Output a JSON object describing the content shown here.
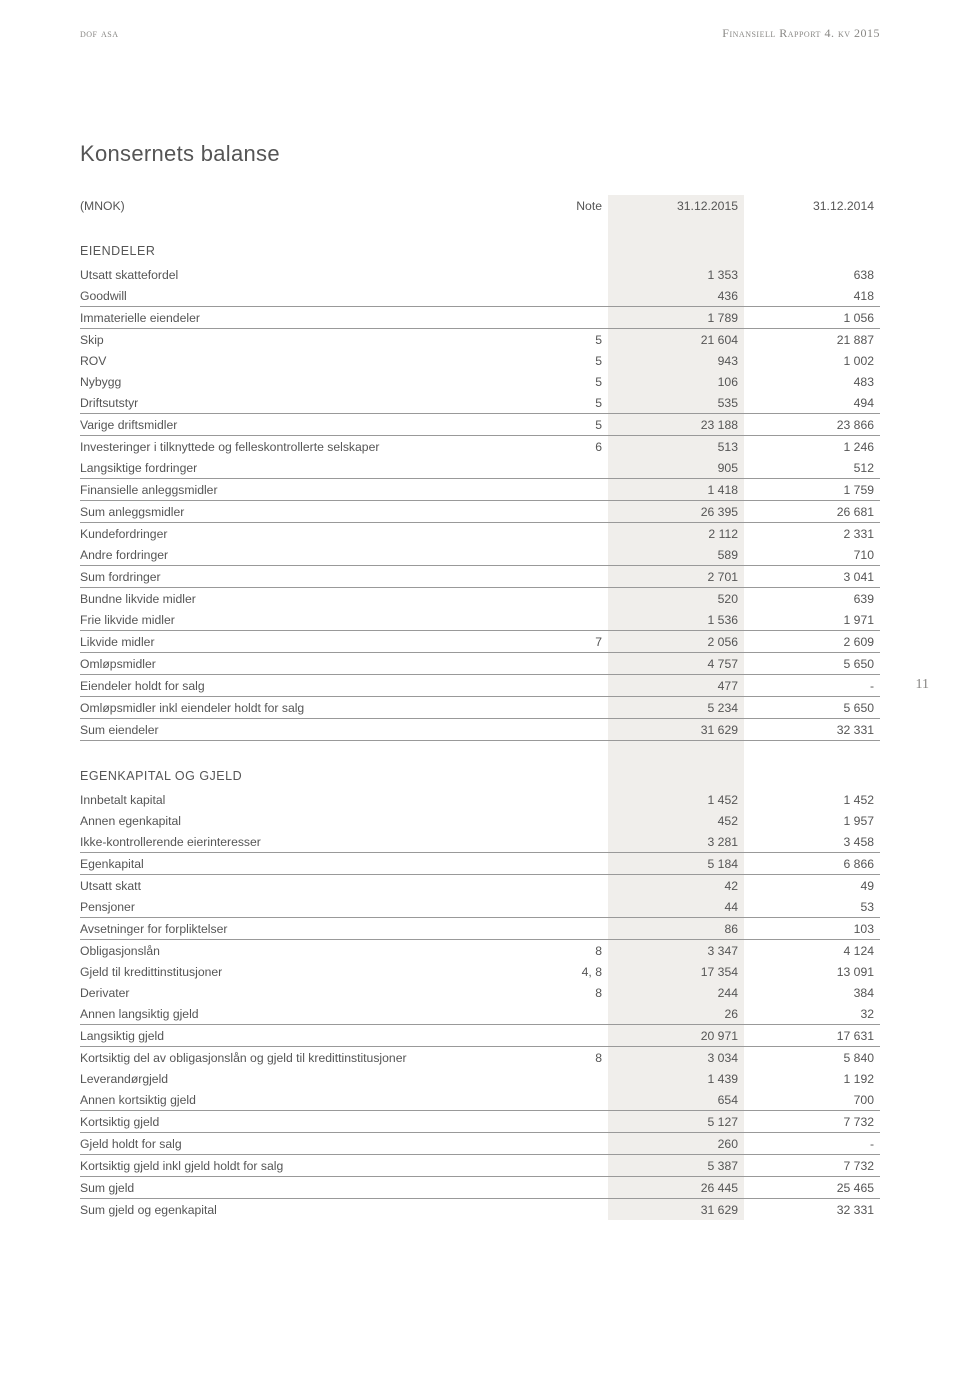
{
  "header": {
    "left": "dof asa",
    "right": "Finansiell Rapport 4. kv 2015"
  },
  "page_number": "11",
  "title": "Konsernets balanse",
  "columns": {
    "c0": "(MNOK)",
    "c1": "Note",
    "c2": "31.12.2015",
    "c3": "31.12.2014"
  },
  "s1_title": "EIENDELER",
  "r": {
    "utsatt_skattefordel": {
      "l": "Utsatt skattefordel",
      "v2": "1 353",
      "v3": "638"
    },
    "goodwill": {
      "l": "Goodwill",
      "v2": "436",
      "v3": "418"
    },
    "immat": {
      "l": "Immaterielle eiendeler",
      "v2": "1 789",
      "v3": "1 056"
    },
    "skip": {
      "l": "Skip",
      "n": "5",
      "v2": "21 604",
      "v3": "21 887"
    },
    "rov": {
      "l": "ROV",
      "n": "5",
      "v2": "943",
      "v3": "1 002"
    },
    "nybygg": {
      "l": "Nybygg",
      "n": "5",
      "v2": "106",
      "v3": "483"
    },
    "driftsutstyr": {
      "l": "Driftsutstyr",
      "n": "5",
      "v2": "535",
      "v3": "494"
    },
    "varige": {
      "l": "Varige driftsmidler",
      "n": "5",
      "v2": "23 188",
      "v3": "23 866"
    },
    "invest": {
      "l": "Investeringer i tilknyttede og felleskontrollerte selskaper",
      "n": "6",
      "v2": "513",
      "v3": "1 246"
    },
    "langsiktige": {
      "l": "Langsiktige fordringer",
      "v2": "905",
      "v3": "512"
    },
    "finansielle": {
      "l": "Finansielle anleggsmidler",
      "v2": "1 418",
      "v3": "1 759"
    },
    "sumanlegg": {
      "l": "Sum anleggsmidler",
      "v2": "26 395",
      "v3": "26 681"
    },
    "kunde": {
      "l": "Kundefordringer",
      "v2": "2 112",
      "v3": "2 331"
    },
    "andre": {
      "l": "Andre fordringer",
      "v2": "589",
      "v3": "710"
    },
    "sumfordr": {
      "l": "Sum fordringer",
      "v2": "2 701",
      "v3": "3 041"
    },
    "bundne": {
      "l": "Bundne likvide midler",
      "v2": "520",
      "v3": "639"
    },
    "frie": {
      "l": "Frie likvide midler",
      "v2": "1 536",
      "v3": "1 971"
    },
    "likvide": {
      "l": "Likvide midler",
      "n": "7",
      "v2": "2 056",
      "v3": "2 609"
    },
    "omlops": {
      "l": "Omløpsmidler",
      "v2": "4 757",
      "v3": "5 650"
    },
    "eienholdt": {
      "l": "Eiendeler holdt for salg",
      "v2": "477",
      "v3": "-"
    },
    "omlopsinkl": {
      "l": "Omløpsmidler inkl eiendeler holdt for salg",
      "v2": "5 234",
      "v3": "5 650"
    },
    "sumeien": {
      "l": "Sum eiendeler",
      "v2": "31 629",
      "v3": "32 331"
    }
  },
  "s2_title": "EGENKAPITAL OG GJELD",
  "r2": {
    "innbetalt": {
      "l": "Innbetalt kapital",
      "v2": "1 452",
      "v3": "1 452"
    },
    "annenek": {
      "l": "Annen egenkapital",
      "v2": "452",
      "v3": "1 957"
    },
    "ikkekontr": {
      "l": "Ikke-kontrollerende eierinteresser",
      "v2": "3 281",
      "v3": "3 458"
    },
    "egenkap": {
      "l": "Egenkapital",
      "v2": "5 184",
      "v3": "6 866"
    },
    "utsattskatt": {
      "l": "Utsatt skatt",
      "v2": "42",
      "v3": "49"
    },
    "pensjoner": {
      "l": "Pensjoner",
      "v2": "44",
      "v3": "53"
    },
    "avsetn": {
      "l": "Avsetninger for forpliktelser",
      "v2": "86",
      "v3": "103"
    },
    "oblig": {
      "l": "Obligasjonslån",
      "n": "8",
      "v2": "3 347",
      "v3": "4 124"
    },
    "gjeldkred": {
      "l": "Gjeld til kredittinstitusjoner",
      "n": "4, 8",
      "v2": "17 354",
      "v3": "13 091"
    },
    "derivater": {
      "l": "Derivater",
      "n": "8",
      "v2": "244",
      "v3": "384"
    },
    "annenlang": {
      "l": "Annen langsiktig gjeld",
      "v2": "26",
      "v3": "32"
    },
    "langgjeld": {
      "l": "Langsiktig gjeld",
      "v2": "20 971",
      "v3": "17 631"
    },
    "kortoblig": {
      "l": "Kortsiktig del av obligasjonslån og gjeld til kredittinstitusjoner",
      "n": "8",
      "v2": "3 034",
      "v3": "5 840"
    },
    "lever": {
      "l": "Leverandørgjeld",
      "v2": "1 439",
      "v3": "1 192"
    },
    "annenkort": {
      "l": "Annen kortsiktig gjeld",
      "v2": "654",
      "v3": "700"
    },
    "kortgjeld": {
      "l": "Kortsiktig gjeld",
      "v2": "5 127",
      "v3": "7 732"
    },
    "gjeldholdt": {
      "l": "Gjeld holdt for salg",
      "v2": "260",
      "v3": "-"
    },
    "kortinkl": {
      "l": "Kortsiktig gjeld inkl gjeld holdt for salg",
      "v2": "5 387",
      "v3": "7 732"
    },
    "sumgjeld": {
      "l": "Sum gjeld",
      "v2": "26 445",
      "v3": "25 465"
    },
    "sumgjeldek": {
      "l": "Sum gjeld og egenkapital",
      "v2": "31 629",
      "v3": "32 331"
    }
  }
}
